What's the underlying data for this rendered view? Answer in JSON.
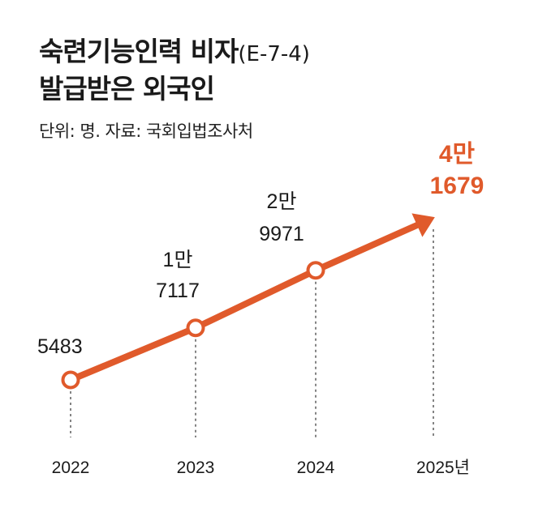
{
  "title_line1": "숙련기능인력 비자",
  "title_suffix": "(E-7-4)",
  "title_line2": "발급받은 외국인",
  "subtitle": "단위: 명. 자료: 국회입법조사처",
  "colors": {
    "accent": "#e05a2b",
    "text": "#1a1a1a",
    "guide": "#333333"
  },
  "chart_data": {
    "type": "line",
    "title": "숙련기능인력 비자(E-7-4) 발급받은 외국인",
    "xlabel": "",
    "ylabel": "",
    "unit": "명",
    "source": "국회입법조사처",
    "categories": [
      "2022",
      "2023",
      "2024",
      "2025년"
    ],
    "values": [
      5483,
      17117,
      29971,
      41679
    ],
    "value_labels": [
      [
        "5483"
      ],
      [
        "1만",
        "7117"
      ],
      [
        "2만",
        "9971"
      ],
      [
        "4만",
        "1679"
      ]
    ],
    "ylim": [
      0,
      50000
    ],
    "grid": false,
    "legend": "none"
  }
}
